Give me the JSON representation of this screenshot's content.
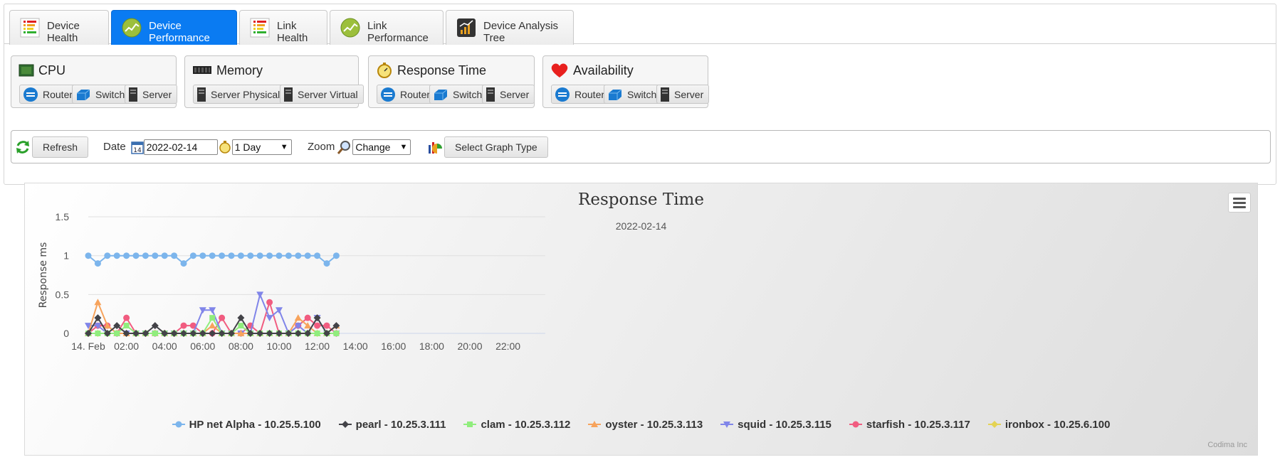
{
  "tabs": [
    {
      "label": "Device Health",
      "icon": "health-bars-icon",
      "active": false
    },
    {
      "label": "Device Performance",
      "icon": "performance-chart-icon",
      "active": true
    },
    {
      "label": "Link Health",
      "icon": "health-bars-icon",
      "active": false
    },
    {
      "label": "Link Performance",
      "icon": "performance-chart-icon",
      "active": false
    },
    {
      "label": "Device Analysis Tree",
      "icon": "analysis-tree-icon",
      "active": false
    }
  ],
  "groups": {
    "cpu": {
      "title": "CPU",
      "icon": "cpu-chip-icon",
      "buttons": [
        "Router",
        "Switch",
        "Server"
      ]
    },
    "memory": {
      "title": "Memory",
      "icon": "memory-module-icon",
      "buttons": [
        "Server Physical",
        "Server Virtual"
      ]
    },
    "response": {
      "title": "Response Time",
      "icon": "stopwatch-icon",
      "buttons": [
        "Router",
        "Switch",
        "Server"
      ]
    },
    "availability": {
      "title": "Availability",
      "icon": "heart-icon",
      "buttons": [
        "Router",
        "Switch",
        "Server"
      ]
    }
  },
  "toolbar": {
    "refresh_label": "Refresh",
    "date_label": "Date",
    "date_value": "2022-02-14",
    "period_value": "1 Day",
    "zoom_label": "Zoom",
    "zoom_value": "Change",
    "graph_type_label": "Select Graph Type"
  },
  "colors": {
    "active_tab": "#0a7bf2",
    "series": [
      "#7cb5ec",
      "#434348",
      "#90ed7d",
      "#f7a35c",
      "#8085e9",
      "#f15c80",
      "#e4d354"
    ]
  },
  "chart_data": {
    "type": "line",
    "title": "Response Time",
    "subtitle": "2022-02-14",
    "ylabel": "Response ms",
    "ylim": [
      0,
      1.5
    ],
    "yticks": [
      "0",
      "0.5",
      "1",
      "1.5"
    ],
    "xticks": [
      "14. Feb",
      "02:00",
      "04:00",
      "06:00",
      "08:00",
      "10:00",
      "12:00",
      "14:00",
      "16:00",
      "18:00",
      "20:00",
      "22:00"
    ],
    "x_hours": [
      0,
      0.5,
      1,
      1.5,
      2,
      2.5,
      3,
      3.5,
      4,
      4.5,
      5,
      5.5,
      6,
      6.5,
      7,
      7.5,
      8,
      8.5,
      9,
      9.5,
      10,
      10.5,
      11,
      11.5,
      12,
      12.5,
      13
    ],
    "legend_position": "bottom",
    "series": [
      {
        "name": "HP net Alpha - 10.25.5.100",
        "marker": "circle",
        "values": [
          1,
          0.9,
          1,
          1,
          1,
          1,
          1,
          1,
          1,
          1,
          0.9,
          1,
          1,
          1,
          1,
          1,
          1,
          1,
          1,
          1,
          1,
          1,
          1,
          1,
          1,
          0.9,
          1
        ]
      },
      {
        "name": "pearl - 10.25.3.111",
        "marker": "diamond",
        "values": [
          0,
          0.2,
          0,
          0.1,
          0,
          0,
          0,
          0.1,
          0,
          0,
          0,
          0,
          0,
          0,
          0,
          0,
          0.2,
          0,
          0,
          0,
          0,
          0,
          0,
          0,
          0.2,
          0,
          0.1
        ]
      },
      {
        "name": "clam - 10.25.3.112",
        "marker": "square",
        "values": [
          0,
          0,
          0,
          0,
          0.1,
          0,
          0,
          0,
          0,
          0,
          0,
          0,
          0,
          0.2,
          0,
          0,
          0.1,
          0,
          0,
          0,
          0,
          0,
          0,
          0,
          0,
          0,
          0
        ]
      },
      {
        "name": "oyster - 10.25.3.113",
        "marker": "triangle",
        "values": [
          0,
          0.4,
          0.1,
          0,
          0,
          0,
          0,
          0,
          0,
          0,
          0,
          0,
          0,
          0.1,
          0,
          0,
          0,
          0,
          0,
          0,
          0,
          0,
          0.2,
          0.1,
          0,
          0,
          0.1
        ]
      },
      {
        "name": "squid - 10.25.3.115",
        "marker": "triangle-down",
        "values": [
          0.1,
          0.1,
          0,
          0,
          0,
          0,
          0,
          0,
          0,
          0,
          0,
          0,
          0.3,
          0.3,
          0,
          0,
          0,
          0,
          0.5,
          0.2,
          0.3,
          0,
          0.1,
          0,
          0.2,
          0,
          0
        ]
      },
      {
        "name": "starfish - 10.25.3.117",
        "marker": "circle",
        "values": [
          0,
          0.1,
          0.1,
          0,
          0.2,
          0,
          0,
          0,
          0,
          0,
          0.1,
          0.1,
          0,
          0,
          0.2,
          0,
          0,
          0.1,
          0,
          0.4,
          0,
          0,
          0.1,
          0.2,
          0.1,
          0.1,
          0
        ]
      },
      {
        "name": "ironbox - 10.25.6.100",
        "marker": "diamond",
        "values": [
          0,
          0,
          0,
          0,
          0,
          0,
          0,
          0,
          0,
          0,
          0,
          0,
          0,
          0,
          0,
          0,
          0,
          0,
          0,
          0,
          0,
          0,
          0,
          0,
          0,
          0,
          0
        ]
      }
    ],
    "credits": "Codima Inc"
  }
}
